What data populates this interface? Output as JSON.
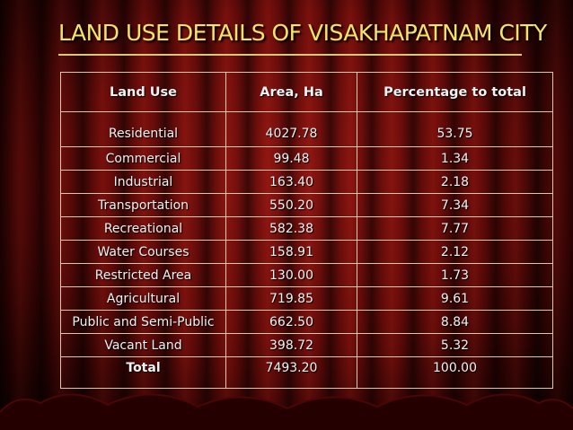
{
  "slide": {
    "title": "LAND USE DETAILS OF VISAKHAPATNAM CITY"
  },
  "table": {
    "headers": [
      "Land Use",
      "Area, Ha",
      "Percentage to total"
    ],
    "rows": [
      [
        "Residential",
        "4027.78",
        "53.75"
      ],
      [
        "Commercial",
        "99.48",
        "1.34"
      ],
      [
        "Industrial",
        "163.40",
        "2.18"
      ],
      [
        "Transportation",
        "550.20",
        "7.34"
      ],
      [
        "Recreational",
        "582.38",
        "7.77"
      ],
      [
        "Water Courses",
        "158.91",
        "2.12"
      ],
      [
        "Restricted Area",
        "130.00",
        "1.73"
      ],
      [
        "Agricultural",
        "719.85",
        "9.61"
      ],
      [
        "Public and Semi-Public",
        "662.50",
        "8.84"
      ],
      [
        "Vacant Land",
        "398.72",
        "5.32"
      ]
    ],
    "total": [
      "Total",
      "7493.20",
      "100.00"
    ]
  },
  "colors": {
    "title": "#f4e26a",
    "background": "#6a0c0a",
    "table_border": "#d9c7b0"
  }
}
